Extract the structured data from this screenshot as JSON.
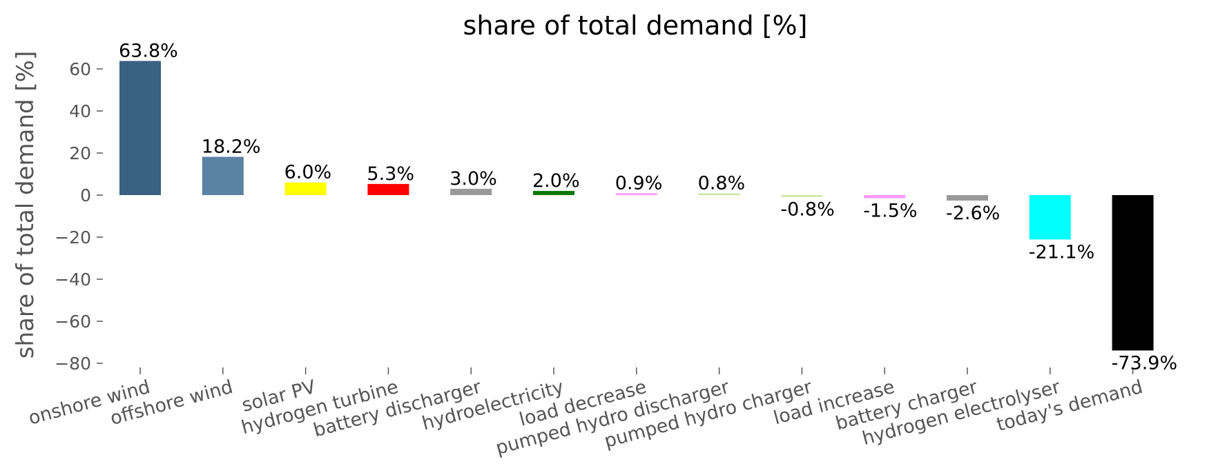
{
  "chart_data": {
    "type": "bar",
    "title": "share of total demand [%]",
    "xlabel": "",
    "ylabel": "share of total demand [%]",
    "ylim": [
      -82,
      71
    ],
    "yticks": [
      60,
      40,
      20,
      0,
      -20,
      -40,
      -60,
      -80
    ],
    "ytick_labels": [
      "60",
      "40",
      "20",
      "0",
      "−20",
      "−40",
      "−60",
      "−80"
    ],
    "grid": false,
    "categories": [
      "onshore wind",
      "offshore wind",
      "solar PV",
      "hydrogen turbine",
      "battery discharger",
      "hydroelectricity",
      "load decrease",
      "pumped hydro discharger",
      "pumped hydro charger",
      "load increase",
      "battery charger",
      "hydrogen electrolyser",
      "today's demand"
    ],
    "values": [
      63.8,
      18.2,
      6.0,
      5.3,
      3.0,
      2.0,
      0.9,
      0.8,
      -0.8,
      -1.5,
      -2.6,
      -21.1,
      -73.9
    ],
    "value_labels": [
      "63.8%",
      "18.2%",
      "6.0%",
      "5.3%",
      "3.0%",
      "2.0%",
      "0.9%",
      "0.8%",
      "-0.8%",
      "-1.5%",
      "-2.6%",
      "-21.1%",
      "-73.9%"
    ],
    "colors": [
      "#3b6182",
      "#5b81a3",
      "#ffff00",
      "#ff0000",
      "#999999",
      "#0a7a0a",
      "#ff99ff",
      "#c8e6a0",
      "#c8e6a0",
      "#ff99ff",
      "#999999",
      "#00ffff",
      "#000000"
    ]
  }
}
